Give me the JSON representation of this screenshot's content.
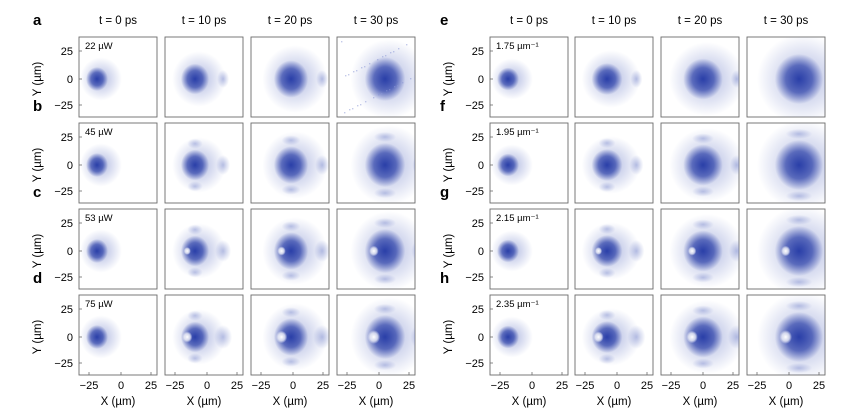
{
  "figure": {
    "left": {
      "time_labels": [
        "t = 0 ps",
        "t = 10 ps",
        "t = 20 ps",
        "t = 30 ps"
      ],
      "rows": [
        {
          "panel": "a",
          "annotation": "22 µW"
        },
        {
          "panel": "b",
          "annotation": "45 µW"
        },
        {
          "panel": "c",
          "annotation": "53 µW"
        },
        {
          "panel": "d",
          "annotation": "75 µW"
        }
      ]
    },
    "right": {
      "time_labels": [
        "t = 0 ps",
        "t = 10 ps",
        "t = 20 ps",
        "t = 30 ps"
      ],
      "rows": [
        {
          "panel": "e",
          "annotation": "1.75 µm⁻¹"
        },
        {
          "panel": "f",
          "annotation": "1.95 µm⁻¹"
        },
        {
          "panel": "g",
          "annotation": "2.15 µm⁻¹"
        },
        {
          "panel": "h",
          "annotation": "2.35 µm⁻¹"
        }
      ]
    },
    "y_axis": {
      "label": "Y (µm)",
      "ticks": [
        "25",
        "0",
        "−25"
      ]
    },
    "x_axis": {
      "label": "X (µm)",
      "ticks": [
        "−25",
        "0",
        "25"
      ]
    },
    "colors": {
      "intensity": "#2a3fa8",
      "frame": "#6b6b6b"
    }
  }
}
